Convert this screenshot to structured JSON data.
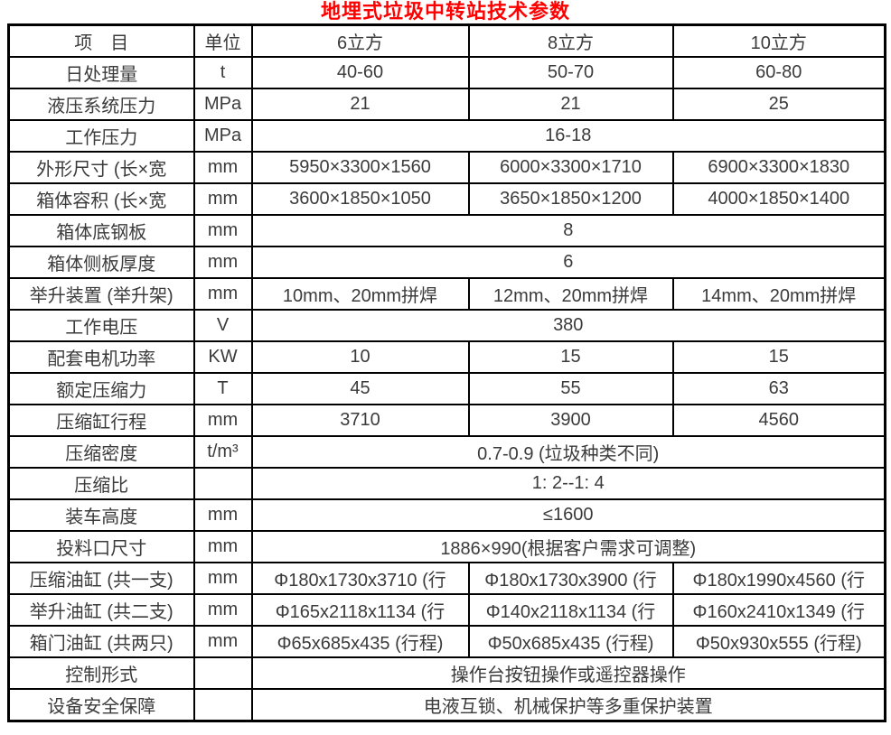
{
  "title": "地埋式垃圾中转站技术参数",
  "colors": {
    "title_text": "#ff0000",
    "border": "#000000",
    "cell_text": "#3b3b3b",
    "background": "#ffffff"
  },
  "table": {
    "headers": [
      "项　目",
      "单位",
      "6立方",
      "8立方",
      "10立方"
    ],
    "rows": [
      {
        "label": "日处理量",
        "unit": "t",
        "values": [
          "40-60",
          "50-70",
          "60-80"
        ]
      },
      {
        "label": "液压系统压力",
        "unit": "MPa",
        "values": [
          "21",
          "21",
          "25"
        ]
      },
      {
        "label": "工作压力",
        "unit": "MPa",
        "span": "16-18"
      },
      {
        "label": "外形尺寸 (长×宽",
        "unit": "mm",
        "values": [
          "5950×3300×1560",
          "6000×3300×1710",
          "6900×3300×1830"
        ]
      },
      {
        "label": "箱体容积 (长×宽",
        "unit": "mm",
        "values": [
          "3600×1850×1050",
          "3650×1850×1200",
          "4000×1850×1400"
        ]
      },
      {
        "label": "箱体底钢板",
        "unit": "mm",
        "span": "8"
      },
      {
        "label": "箱体侧板厚度",
        "unit": "mm",
        "span": "6"
      },
      {
        "label": "举升装置 (举升架)",
        "unit": "mm",
        "values": [
          "10mm、20mm拼焊",
          "12mm、20mm拼焊",
          "14mm、20mm拼焊"
        ]
      },
      {
        "label": "工作电压",
        "unit": "V",
        "span": "380"
      },
      {
        "label": "配套电机功率",
        "unit": "KW",
        "values": [
          "10",
          "15",
          "15"
        ]
      },
      {
        "label": "额定压缩力",
        "unit": "T",
        "values": [
          "45",
          "55",
          "63"
        ]
      },
      {
        "label": "压缩缸行程",
        "unit": "mm",
        "values": [
          "3710",
          "3900",
          "4560"
        ]
      },
      {
        "label": "压缩密度",
        "unit": "t/m³",
        "span": "0.7-0.9 (垃圾种类不同)"
      },
      {
        "label": "压缩比",
        "unit": "",
        "span": "1: 2--1: 4"
      },
      {
        "label": "装车高度",
        "unit": "mm",
        "span": "≤1600"
      },
      {
        "label": "投料口尺寸",
        "unit": "mm",
        "span": "1886×990(根据客户需求可调整)"
      },
      {
        "label": "压缩油缸 (共一支)",
        "unit": "mm",
        "values": [
          "Φ180x1730x3710 (行",
          "Φ180x1730x3900 (行",
          "Φ180x1990x4560 (行"
        ]
      },
      {
        "label": "举升油缸 (共二支)",
        "unit": "mm",
        "values": [
          "Φ165x2118x1134 (行",
          "Φ140x2118x1134 (行",
          "Φ160x2410x1349 (行"
        ]
      },
      {
        "label": "箱门油缸 (共两只)",
        "unit": "mm",
        "values": [
          "Φ65x685x435 (行程)",
          "Φ50x685x435 (行程)",
          "Φ50x930x555 (行程)"
        ]
      },
      {
        "label": "控制形式",
        "unit": "",
        "span": "操作台按钮操作或遥控器操作"
      },
      {
        "label": "设备安全保障",
        "unit": "",
        "span": "电液互锁、机械保护等多重保护装置"
      }
    ]
  }
}
